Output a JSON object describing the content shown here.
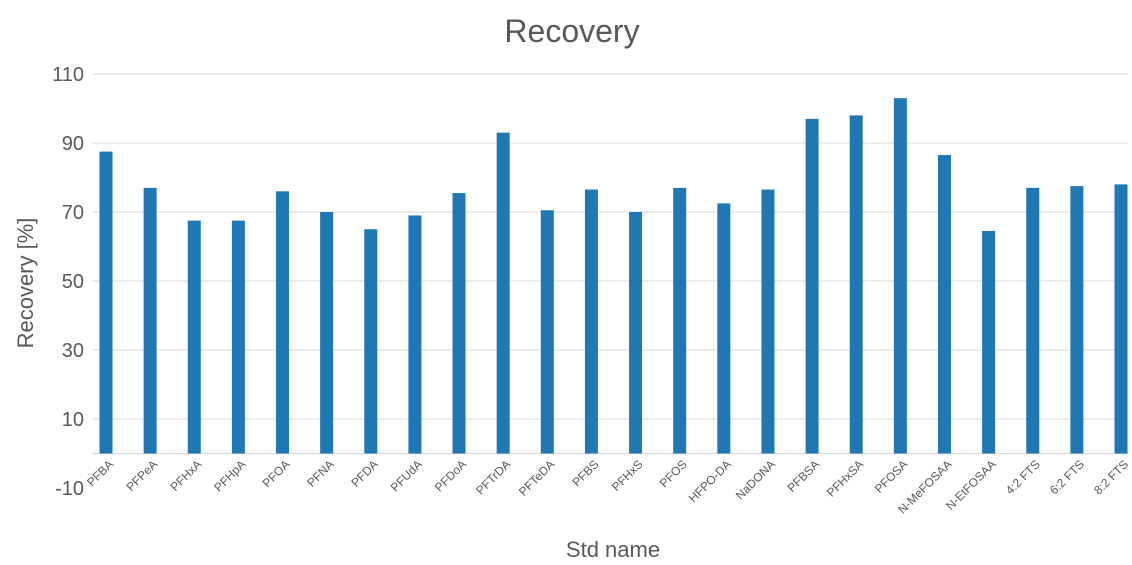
{
  "chart_data": {
    "type": "bar",
    "title": "Recovery",
    "xlabel": "Std name",
    "ylabel": "Recovery [%]",
    "ylim": [
      -10,
      110
    ],
    "yticks": [
      -10,
      10,
      30,
      50,
      70,
      90,
      110
    ],
    "grid": true,
    "legend": "none",
    "color": "#1F77B4",
    "categories": [
      "PFBA",
      "PFPeA",
      "PFHxA",
      "PFHpA",
      "PFOA",
      "PFNA",
      "PFDA",
      "PFUdA",
      "PFDoA",
      "PFTrDA",
      "PFTeDA",
      "PFBS",
      "PFHxS",
      "PFOS",
      "HFPO-DA",
      "NaDONA",
      "PFBSA",
      "PFHxSA",
      "PFOSA",
      "N-MeFOSAA",
      "N-EtFOSAA",
      "4:2 FTS",
      "6:2 FTS",
      "8:2 FTS"
    ],
    "values": [
      87.5,
      77,
      67.5,
      67.5,
      76,
      70,
      65,
      69,
      75.5,
      93,
      70.5,
      76.5,
      70,
      77,
      72.5,
      76.5,
      97,
      98,
      103,
      86.5,
      64.5,
      77,
      77.5,
      78
    ]
  }
}
